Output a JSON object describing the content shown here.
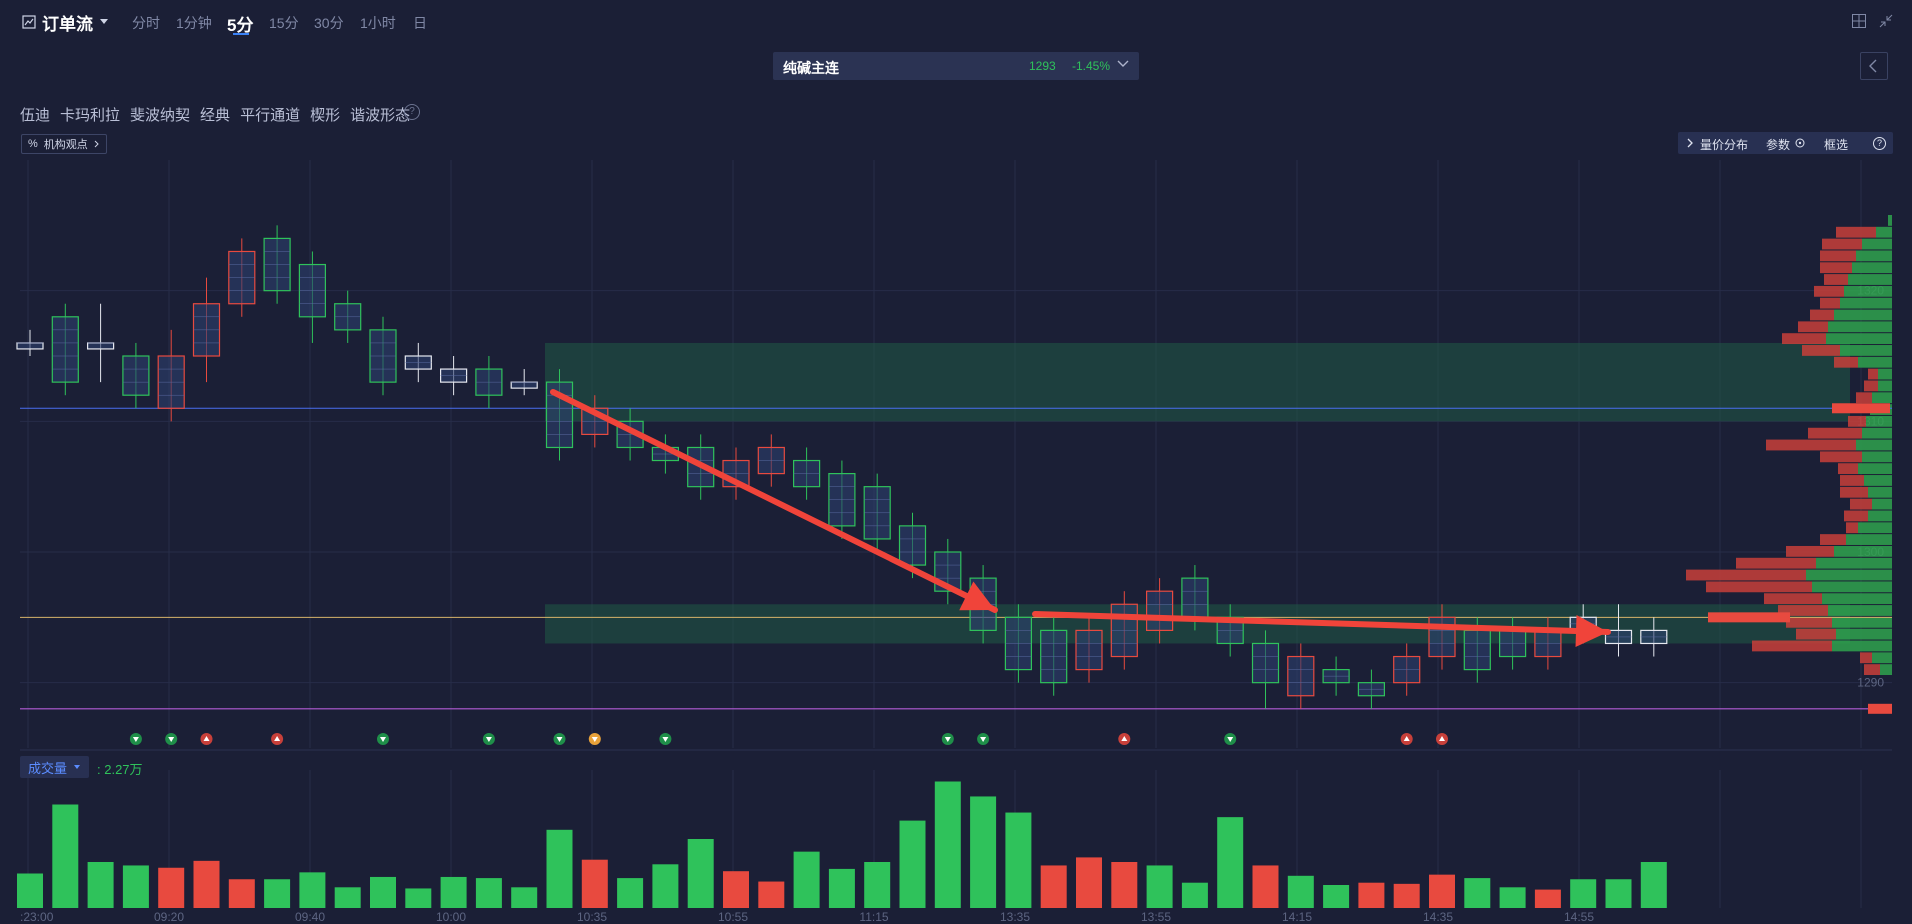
{
  "header": {
    "title": "订单流",
    "timeframes": [
      "分时",
      "1分钟",
      "5分",
      "15分",
      "30分",
      "1小时",
      "日"
    ],
    "active_timeframe": "5分"
  },
  "contract": {
    "name": "纯碱主连",
    "price": "1293",
    "change": "-1.45%"
  },
  "toolbar": {
    "tools": [
      "伍迪",
      "卡玛利拉",
      "斐波纳契",
      "经典",
      "平行通道",
      "楔形",
      "谐波形态"
    ],
    "help": "?",
    "institution_view": "机构观点",
    "institution_tag": "%"
  },
  "right_toolbar": {
    "volume_profile": "量价分布",
    "params": "参数",
    "box_select": "框选",
    "help": "?"
  },
  "price_axis": [
    "1320",
    "1310",
    "1300",
    "1290"
  ],
  "time_axis": [
    ":23:00",
    "09:20",
    "09:40",
    "10:00",
    "10:35",
    "10:55",
    "11:15",
    "13:35",
    "13:55",
    "14:15",
    "14:35",
    "14:55"
  ],
  "volume_panel": {
    "label": "成交量",
    "value": ": 2.27万"
  },
  "colors": {
    "up": "#2fc25b",
    "down": "#e84a3f",
    "accent": "#3b82f6",
    "background": "#1b1f36"
  },
  "chart_data": {
    "type": "bar",
    "price_series": {
      "name": "",
      "ylim": [
        1285,
        1330
      ],
      "candles": [
        {
          "o": 1316,
          "c": 1316,
          "h": 1317,
          "l": 1315,
          "dir": "flat"
        },
        {
          "o": 1313,
          "c": 1318,
          "h": 1319,
          "l": 1312,
          "dir": "up"
        },
        {
          "o": 1316,
          "c": 1316,
          "h": 1319,
          "l": 1313,
          "dir": "flat"
        },
        {
          "o": 1312,
          "c": 1315,
          "h": 1316,
          "l": 1311,
          "dir": "up"
        },
        {
          "o": 1315,
          "c": 1311,
          "h": 1317,
          "l": 1310,
          "dir": "down"
        },
        {
          "o": 1315,
          "c": 1319,
          "h": 1321,
          "l": 1313,
          "dir": "down"
        },
        {
          "o": 1319,
          "c": 1323,
          "h": 1324,
          "l": 1318,
          "dir": "down"
        },
        {
          "o": 1324,
          "c": 1320,
          "h": 1325,
          "l": 1319,
          "dir": "up"
        },
        {
          "o": 1318,
          "c": 1322,
          "h": 1323,
          "l": 1316,
          "dir": "up"
        },
        {
          "o": 1319,
          "c": 1317,
          "h": 1320,
          "l": 1316,
          "dir": "up"
        },
        {
          "o": 1313,
          "c": 1317,
          "h": 1318,
          "l": 1312,
          "dir": "up"
        },
        {
          "o": 1314,
          "c": 1315,
          "h": 1316,
          "l": 1313,
          "dir": "flat"
        },
        {
          "o": 1313,
          "c": 1314,
          "h": 1315,
          "l": 1312,
          "dir": "flat"
        },
        {
          "o": 1312,
          "c": 1314,
          "h": 1315,
          "l": 1311,
          "dir": "up"
        },
        {
          "o": 1313,
          "c": 1313,
          "h": 1314,
          "l": 1312,
          "dir": "flat"
        },
        {
          "o": 1308,
          "c": 1313,
          "h": 1314,
          "l": 1307,
          "dir": "up"
        },
        {
          "o": 1311,
          "c": 1309,
          "h": 1312,
          "l": 1308,
          "dir": "down"
        },
        {
          "o": 1308,
          "c": 1310,
          "h": 1311,
          "l": 1307,
          "dir": "up"
        },
        {
          "o": 1307,
          "c": 1308,
          "h": 1309,
          "l": 1306,
          "dir": "up"
        },
        {
          "o": 1305,
          "c": 1308,
          "h": 1309,
          "l": 1304,
          "dir": "up"
        },
        {
          "o": 1305,
          "c": 1307,
          "h": 1308,
          "l": 1304,
          "dir": "down"
        },
        {
          "o": 1306,
          "c": 1308,
          "h": 1309,
          "l": 1305,
          "dir": "down"
        },
        {
          "o": 1305,
          "c": 1307,
          "h": 1308,
          "l": 1304,
          "dir": "up"
        },
        {
          "o": 1302,
          "c": 1306,
          "h": 1307,
          "l": 1301,
          "dir": "up"
        },
        {
          "o": 1301,
          "c": 1305,
          "h": 1306,
          "l": 1300,
          "dir": "up"
        },
        {
          "o": 1299,
          "c": 1302,
          "h": 1303,
          "l": 1298,
          "dir": "up"
        },
        {
          "o": 1297,
          "c": 1300,
          "h": 1301,
          "l": 1296,
          "dir": "up"
        },
        {
          "o": 1294,
          "c": 1298,
          "h": 1299,
          "l": 1293,
          "dir": "up"
        },
        {
          "o": 1291,
          "c": 1295,
          "h": 1296,
          "l": 1290,
          "dir": "up"
        },
        {
          "o": 1290,
          "c": 1294,
          "h": 1295,
          "l": 1289,
          "dir": "up"
        },
        {
          "o": 1291,
          "c": 1294,
          "h": 1295,
          "l": 1290,
          "dir": "down"
        },
        {
          "o": 1292,
          "c": 1296,
          "h": 1297,
          "l": 1291,
          "dir": "down"
        },
        {
          "o": 1294,
          "c": 1297,
          "h": 1298,
          "l": 1293,
          "dir": "down"
        },
        {
          "o": 1295,
          "c": 1298,
          "h": 1299,
          "l": 1294,
          "dir": "up"
        },
        {
          "o": 1293,
          "c": 1295,
          "h": 1296,
          "l": 1292,
          "dir": "up"
        },
        {
          "o": 1290,
          "c": 1293,
          "h": 1294,
          "l": 1288,
          "dir": "up"
        },
        {
          "o": 1289,
          "c": 1292,
          "h": 1293,
          "l": 1288,
          "dir": "down"
        },
        {
          "o": 1290,
          "c": 1291,
          "h": 1292,
          "l": 1289,
          "dir": "up"
        },
        {
          "o": 1289,
          "c": 1290,
          "h": 1291,
          "l": 1288,
          "dir": "up"
        },
        {
          "o": 1290,
          "c": 1292,
          "h": 1293,
          "l": 1289,
          "dir": "down"
        },
        {
          "o": 1292,
          "c": 1295,
          "h": 1296,
          "l": 1291,
          "dir": "down"
        },
        {
          "o": 1291,
          "c": 1294,
          "h": 1295,
          "l": 1290,
          "dir": "up"
        },
        {
          "o": 1292,
          "c": 1294,
          "h": 1295,
          "l": 1291,
          "dir": "up"
        },
        {
          "o": 1292,
          "c": 1294,
          "h": 1295,
          "l": 1291,
          "dir": "down"
        },
        {
          "o": 1294,
          "c": 1295,
          "h": 1296,
          "l": 1293,
          "dir": "flat"
        },
        {
          "o": 1293,
          "c": 1294,
          "h": 1296,
          "l": 1292,
          "dir": "flat"
        },
        {
          "o": 1293,
          "c": 1294,
          "h": 1295,
          "l": 1292,
          "dir": "flat"
        }
      ]
    },
    "volume_series": {
      "name": "",
      "values": [
        30,
        90,
        40,
        37,
        35,
        41,
        25,
        25,
        31,
        18,
        27,
        17,
        27,
        26,
        18,
        68,
        42,
        26,
        38,
        60,
        32,
        23,
        49,
        34,
        40,
        76,
        110,
        97,
        83,
        37,
        44,
        40,
        37,
        22,
        79,
        37,
        28,
        20,
        22,
        21,
        29,
        26,
        18,
        16,
        25,
        25,
        40
      ],
      "directions": [
        "up",
        "up",
        "up",
        "up",
        "down",
        "down",
        "down",
        "up",
        "up",
        "up",
        "up",
        "up",
        "up",
        "up",
        "up",
        "up",
        "down",
        "up",
        "up",
        "up",
        "down",
        "down",
        "up",
        "up",
        "up",
        "up",
        "up",
        "up",
        "up",
        "down",
        "down",
        "down",
        "up",
        "up",
        "up",
        "down",
        "up",
        "up",
        "down",
        "down",
        "down",
        "up",
        "up",
        "down",
        "up",
        "up",
        "up"
      ]
    },
    "volume_profile": [
      {
        "g": 4,
        "r": 0
      },
      {
        "g": 16,
        "r": 40
      },
      {
        "g": 30,
        "r": 40
      },
      {
        "g": 36,
        "r": 36
      },
      {
        "g": 40,
        "r": 32
      },
      {
        "g": 44,
        "r": 24
      },
      {
        "g": 48,
        "r": 30
      },
      {
        "g": 52,
        "r": 20
      },
      {
        "g": 58,
        "r": 24
      },
      {
        "g": 64,
        "r": 30
      },
      {
        "g": 66,
        "r": 44
      },
      {
        "g": 52,
        "r": 38
      },
      {
        "g": 34,
        "r": 24
      },
      {
        "g": 14,
        "r": 10
      },
      {
        "g": 14,
        "r": 14
      },
      {
        "g": 20,
        "r": 16
      },
      {
        "g": 22,
        "r": 0
      },
      {
        "g": 26,
        "r": 18
      },
      {
        "g": 30,
        "r": 54
      },
      {
        "g": 36,
        "r": 90
      },
      {
        "g": 30,
        "r": 42
      },
      {
        "g": 34,
        "r": 20
      },
      {
        "g": 28,
        "r": 24
      },
      {
        "g": 24,
        "r": 28
      },
      {
        "g": 20,
        "r": 22
      },
      {
        "g": 24,
        "r": 24
      },
      {
        "g": 34,
        "r": 12
      },
      {
        "g": 46,
        "r": 26
      },
      {
        "g": 58,
        "r": 48
      },
      {
        "g": 76,
        "r": 80
      },
      {
        "g": 86,
        "r": 120
      },
      {
        "g": 80,
        "r": 106
      },
      {
        "g": 70,
        "r": 58
      },
      {
        "g": 64,
        "r": 50
      },
      {
        "g": 60,
        "r": 46
      },
      {
        "g": 56,
        "r": 40
      },
      {
        "g": 60,
        "r": 80
      },
      {
        "g": 20,
        "r": 12
      },
      {
        "g": 12,
        "r": 16
      }
    ],
    "levels": {
      "blue": 1311,
      "yellow": 1295,
      "purple": 1288
    },
    "zones": [
      {
        "from": 1310,
        "to": 1316
      },
      {
        "from": 1293,
        "to": 1296
      }
    ],
    "signals": [
      {
        "i": 3,
        "kind": "down"
      },
      {
        "i": 4,
        "kind": "down"
      },
      {
        "i": 5,
        "kind": "up"
      },
      {
        "i": 7,
        "kind": "up"
      },
      {
        "i": 10,
        "kind": "down"
      },
      {
        "i": 13,
        "kind": "down"
      },
      {
        "i": 15,
        "kind": "down"
      },
      {
        "i": 16,
        "kind": "warn"
      },
      {
        "i": 18,
        "kind": "down"
      },
      {
        "i": 26,
        "kind": "down"
      },
      {
        "i": 27,
        "kind": "down"
      },
      {
        "i": 31,
        "kind": "up"
      },
      {
        "i": 34,
        "kind": "down"
      },
      {
        "i": 39,
        "kind": "up"
      },
      {
        "i": 40,
        "kind": "up"
      }
    ]
  }
}
